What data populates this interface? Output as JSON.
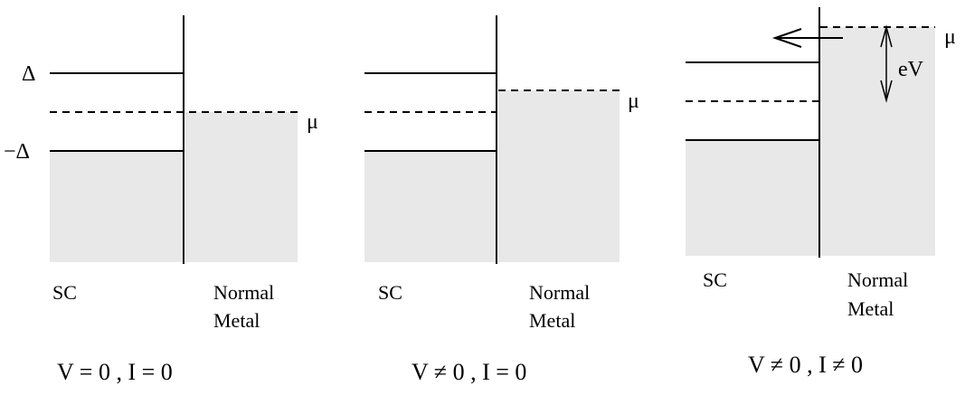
{
  "colors": {
    "fill": "#e8e8e8",
    "line": "#000000"
  },
  "panels": [
    {
      "sc_label": "SC",
      "normal_label_line1": "Normal",
      "normal_label_line2": "Metal",
      "caption": "V = 0 ,  I = 0",
      "delta_label": "Δ",
      "neg_delta_label": "−Δ",
      "mu_label": "μ"
    },
    {
      "sc_label": "SC",
      "normal_label_line1": "Normal",
      "normal_label_line2": "Metal",
      "caption": "V ≠ 0 ,  I = 0",
      "mu_label": "μ"
    },
    {
      "sc_label": "SC",
      "normal_label_line1": "Normal",
      "normal_label_line2": "Metal",
      "caption": "V ≠ 0 ,  I ≠ 0",
      "mu_label": "μ",
      "ev_label": "eV"
    }
  ]
}
